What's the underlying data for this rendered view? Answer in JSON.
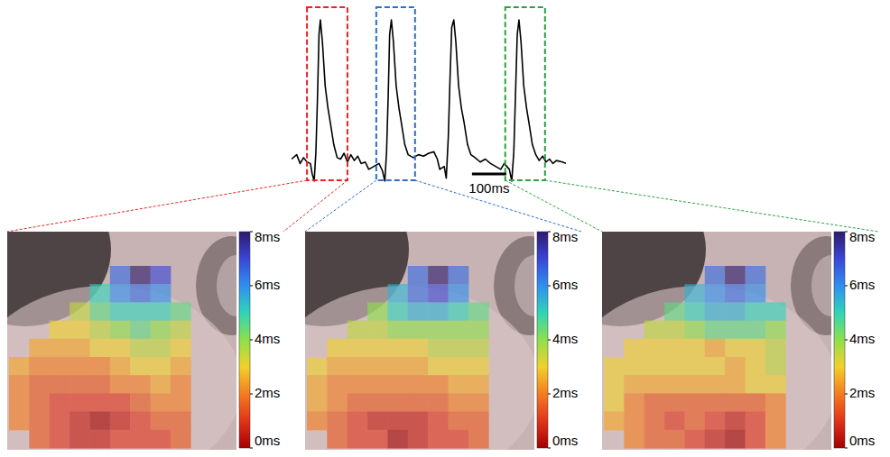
{
  "chart_data": [
    {
      "type": "line",
      "x": [
        0,
        15,
        25,
        35,
        45,
        55,
        60,
        66,
        71,
        76,
        80,
        84,
        90,
        98,
        106,
        113,
        123,
        133,
        143,
        153,
        163,
        173,
        183,
        193,
        203,
        215,
        225,
        240,
        255,
        265,
        272,
        277,
        282,
        286,
        291,
        297,
        305,
        313,
        320,
        330,
        340,
        355,
        370,
        385,
        400,
        415,
        425,
        432,
        445,
        451,
        457,
        462,
        467,
        473,
        479,
        487,
        495,
        503,
        513,
        523,
        535,
        550,
        565,
        580,
        595,
        610,
        620,
        635,
        642,
        648,
        653,
        658,
        663,
        669,
        677,
        685,
        692,
        702,
        712,
        722,
        732,
        742,
        752,
        762,
        772,
        790,
        800
      ],
      "series": [
        {
          "color": "#000000",
          "values": [
            0.05,
            0.08,
            0.02,
            0.06,
            0.03,
            0.02,
            -0.05,
            -0.1,
            0.1,
            0.5,
            0.9,
            1.0,
            0.85,
            0.55,
            0.4,
            0.3,
            0.15,
            0.06,
            0.05,
            0.09,
            0.03,
            0.08,
            0.04,
            0.07,
            0.02,
            0.03,
            -0.02,
            0.0,
            0.02,
            -0.03,
            -0.1,
            0.1,
            0.5,
            0.9,
            1.0,
            0.85,
            0.55,
            0.4,
            0.3,
            0.15,
            0.08,
            0.06,
            0.08,
            0.07,
            0.09,
            0.1,
            0.05,
            -0.02,
            0.0,
            -0.08,
            0.2,
            0.6,
            0.95,
            1.0,
            0.85,
            0.55,
            0.4,
            0.3,
            0.15,
            0.08,
            0.06,
            0.03,
            0.05,
            0.02,
            0.0,
            -0.02,
            0.02,
            -0.02,
            -0.1,
            0.1,
            0.5,
            0.9,
            1.0,
            0.85,
            0.55,
            0.4,
            0.3,
            0.15,
            0.08,
            0.04,
            0.07,
            0.03,
            0.05,
            0.02,
            0.04,
            0.03,
            0.02
          ]
        }
      ],
      "xlim": [
        0,
        800
      ],
      "ylim": [
        -0.15,
        1.05
      ],
      "tick_labels": false,
      "windows": [
        {
          "xlim": [
            45,
            163
          ],
          "color": "#e8241f"
        },
        {
          "xlim": [
            247,
            360
          ],
          "color": "#2a6fd6"
        },
        {
          "xlim": [
            623,
            739
          ],
          "color": "#2ea043"
        }
      ],
      "scale_bar": {
        "x": 526,
        "length": 100,
        "label": "100ms"
      }
    },
    {
      "type": "heatmap",
      "cells": [
        [
          null,
          null,
          null,
          null,
          null,
          6.5,
          8,
          7,
          null
        ],
        [
          null,
          null,
          null,
          null,
          5,
          6,
          6.5,
          6,
          null
        ],
        [
          null,
          null,
          null,
          3.5,
          4.5,
          5,
          5,
          5,
          4.5
        ],
        [
          null,
          null,
          3,
          3,
          3.5,
          4,
          4.5,
          4,
          3.5
        ],
        [
          null,
          2.5,
          2.5,
          2.5,
          3,
          3,
          3.5,
          3.5,
          3
        ],
        [
          2.5,
          2,
          2,
          2,
          2,
          2.5,
          3,
          3,
          2.5
        ],
        [
          2,
          1.5,
          1.5,
          1.5,
          1.5,
          2,
          2,
          2.5,
          2
        ],
        [
          2,
          1.5,
          1,
          1,
          1,
          1,
          1.5,
          2,
          2
        ],
        [
          2,
          1.5,
          1,
          0.5,
          0,
          0.5,
          1,
          1.5,
          1.5
        ],
        [
          null,
          1.5,
          1,
          0.5,
          0.5,
          1,
          1,
          1,
          1.5
        ]
      ],
      "color_range": [
        0,
        8
      ],
      "color_ticks": [
        {
          "value": 0,
          "label": "0ms"
        },
        {
          "value": 2,
          "label": "2ms"
        },
        {
          "value": 4,
          "label": "4ms"
        },
        {
          "value": 6,
          "label": "6ms"
        },
        {
          "value": 8,
          "label": "8ms"
        }
      ]
    },
    {
      "type": "heatmap",
      "cells": [
        [
          null,
          null,
          null,
          null,
          null,
          6.5,
          8,
          6.5,
          null
        ],
        [
          null,
          null,
          null,
          null,
          5.5,
          6.5,
          7,
          6,
          null
        ],
        [
          null,
          null,
          null,
          4,
          5,
          5.5,
          5.5,
          5,
          4.5
        ],
        [
          null,
          null,
          3.5,
          3.5,
          4,
          4,
          4,
          4,
          4
        ],
        [
          null,
          3,
          3,
          3,
          3,
          3,
          3.5,
          3.5,
          3.5
        ],
        [
          3,
          2.5,
          2.5,
          2.5,
          2.5,
          2.5,
          3,
          3,
          3
        ],
        [
          2.5,
          2,
          2,
          2,
          2,
          2,
          2,
          2.5,
          2.5
        ],
        [
          2.5,
          2,
          1.5,
          1.5,
          1.5,
          1.5,
          1.5,
          2,
          2
        ],
        [
          2,
          1.5,
          1,
          0.5,
          0.5,
          0.5,
          1,
          1.5,
          1.5
        ],
        [
          null,
          1.5,
          1,
          1,
          0,
          0.5,
          1,
          1,
          1.5
        ]
      ],
      "color_range": [
        0,
        8
      ],
      "color_ticks": [
        {
          "value": 0,
          "label": "0ms"
        },
        {
          "value": 2,
          "label": "2ms"
        },
        {
          "value": 4,
          "label": "4ms"
        },
        {
          "value": 6,
          "label": "6ms"
        },
        {
          "value": 8,
          "label": "8ms"
        }
      ]
    },
    {
      "type": "heatmap",
      "cells": [
        [
          null,
          null,
          null,
          null,
          null,
          6.5,
          8,
          6.5,
          null
        ],
        [
          null,
          null,
          null,
          null,
          5.5,
          6,
          6.5,
          6,
          null
        ],
        [
          null,
          null,
          null,
          4.5,
          5,
          5.5,
          5.5,
          5,
          5
        ],
        [
          null,
          null,
          3.5,
          3.5,
          4,
          4.5,
          4.5,
          4.5,
          4
        ],
        [
          null,
          3,
          3,
          3,
          3,
          2.5,
          3,
          3,
          3.5
        ],
        [
          3,
          3,
          3,
          3,
          3,
          3,
          2.5,
          3,
          3.5
        ],
        [
          3,
          2.5,
          2.5,
          2.5,
          2.5,
          2.5,
          2.5,
          3,
          3
        ],
        [
          3,
          2,
          1.5,
          1.5,
          1.5,
          1.5,
          1.5,
          1.5,
          2
        ],
        [
          2.5,
          2,
          1.5,
          1,
          1.5,
          1,
          0.5,
          1,
          2
        ],
        [
          null,
          2,
          1.5,
          1.5,
          1,
          0.5,
          0,
          1,
          2
        ]
      ],
      "color_range": [
        0,
        8
      ],
      "color_ticks": [
        {
          "value": 0,
          "label": "0ms"
        },
        {
          "value": 2,
          "label": "2ms"
        },
        {
          "value": 4,
          "label": "4ms"
        },
        {
          "value": 6,
          "label": "6ms"
        },
        {
          "value": 8,
          "label": "8ms"
        }
      ]
    }
  ]
}
